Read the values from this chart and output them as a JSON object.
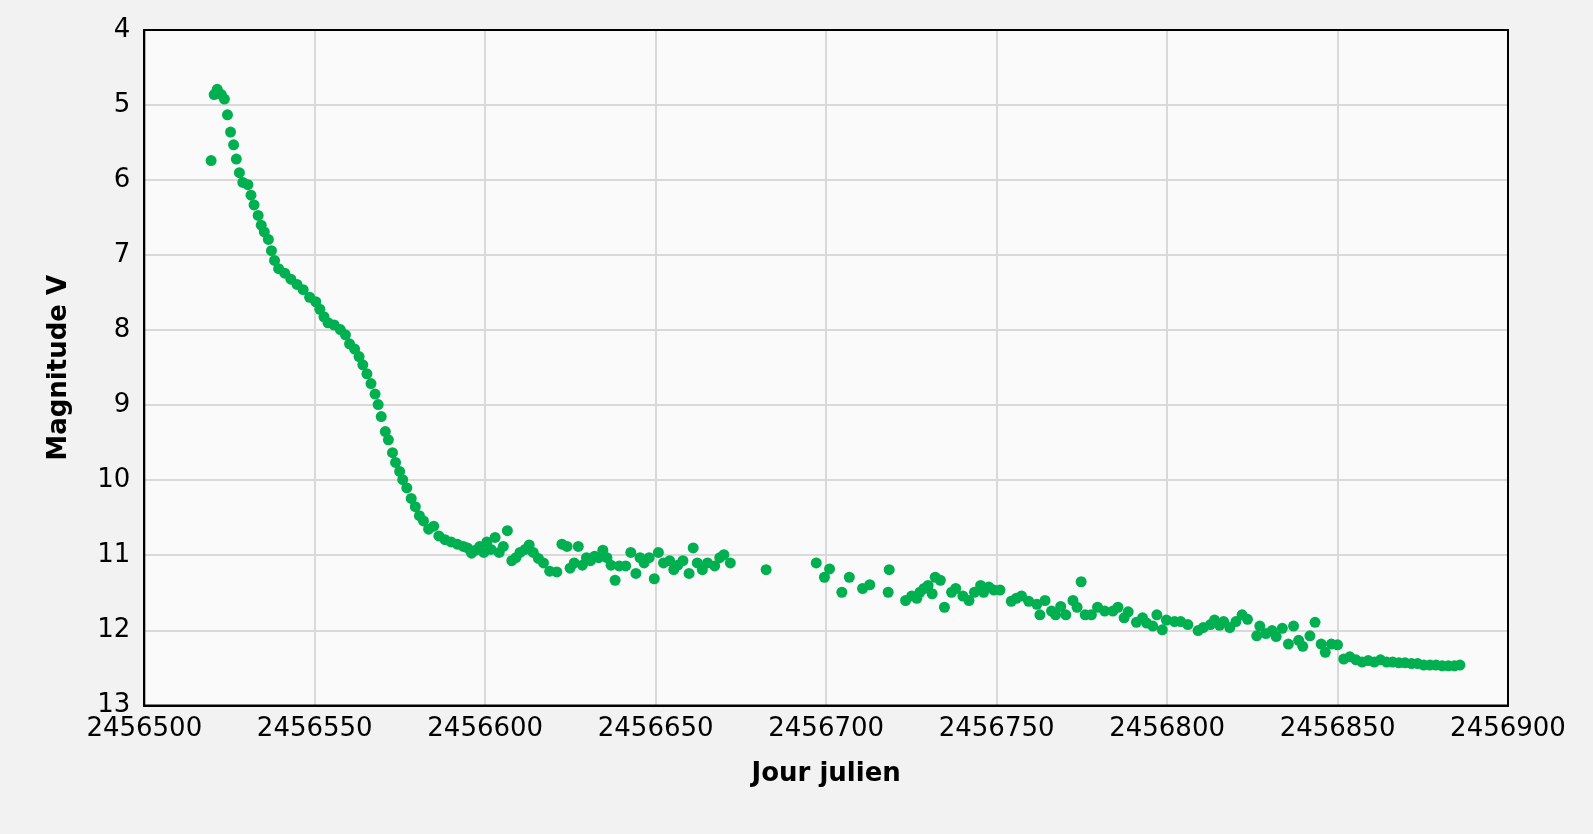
{
  "chart_data": {
    "type": "scatter",
    "xlabel": "Jour julien",
    "ylabel": "Magnitude V",
    "xlim": [
      2456500,
      2456900
    ],
    "xticks": [
      2456500,
      2456550,
      2456600,
      2456650,
      2456700,
      2456750,
      2456800,
      2456850,
      2456900
    ],
    "ylim": [
      13,
      4
    ],
    "yticks": [
      4,
      5,
      6,
      7,
      8,
      9,
      10,
      11,
      12,
      13
    ],
    "grid": true,
    "marker": "circle",
    "series": [
      {
        "color": "#00b050",
        "x": [
          2456519.6,
          2456520.5,
          2456521.4,
          2456522.6,
          2456523.5,
          2456524.4,
          2456525.3,
          2456526.2,
          2456527,
          2456527.9,
          2456528.9,
          2456530.4,
          2456531.3,
          2456532.2,
          2456533.4,
          2456534.3,
          2456535.2,
          2456536.4,
          2456537.3,
          2456538.2,
          2456539.4,
          2456541.2,
          2456543,
          2456544.8,
          2456546.6,
          2456548.5,
          2456550.3,
          2456551.5,
          2456552.7,
          2456553.9,
          2456555.7,
          2456557.5,
          2456559,
          2456560.2,
          2456561.7,
          2456563,
          2456564.1,
          2456565.3,
          2456566.5,
          2456567.7,
          2456568.6,
          2456569.5,
          2456570.7,
          2456571.6,
          2456572.8,
          2456573.7,
          2456574.9,
          2456575.8,
          2456577,
          2456578.3,
          2456579.5,
          2456580.7,
          2456581.9,
          2456583.4,
          2456584.9,
          2456586.4,
          2456588.2,
          2456590,
          2456591.8,
          2456593.6,
          2456594.8,
          2456596,
          2456597.2,
          2456598.4,
          2456599.6,
          2456600.5,
          2456601.7,
          2456602.9,
          2456604.1,
          2456605.3,
          2456606.5,
          2456607.8,
          2456609,
          2456610.2,
          2456611.7,
          2456612.9,
          2456614.1,
          2456615.6,
          2456617.1,
          2456618.9,
          2456621,
          2456622.5,
          2456624,
          2456624.9,
          2456626.1,
          2456627.3,
          2456628.5,
          2456629.7,
          2456630.9,
          2456632.1,
          2456633.3,
          2456634.5,
          2456635.7,
          2456636.9,
          2456638.1,
          2456639.3,
          2456641.2,
          2456642.7,
          2456644.2,
          2456645.4,
          2456646.6,
          2456648.1,
          2456649.6,
          2456650.8,
          2456652.3,
          2456654.1,
          2456655.3,
          2456656.5,
          2456658,
          2456659.8,
          2456661,
          2456662.2,
          2456663.7,
          2456665.2,
          2456667.3,
          2456668.8,
          2456670,
          2456671.9,
          2456682.4,
          2456697.1,
          2456699.5,
          2456701,
          2456704.6,
          2456706.8,
          2456710.7,
          2456712.8,
          2456718.2,
          2456718.5,
          2456723.3,
          2456725.1,
          2456726.6,
          2456727.5,
          2456728.7,
          2456729.9,
          2456731.1,
          2456732,
          2456733.5,
          2456734.7,
          2456736.8,
          2456738,
          2456740.1,
          2456741.9,
          2456743.5,
          2456745.3,
          2456746.2,
          2456747.7,
          2456749.2,
          2456751,
          2456754.3,
          2456755.8,
          2456757.3,
          2456759.4,
          2456761.8,
          2456762.7,
          2456764.2,
          2456766.1,
          2456767.3,
          2456768.8,
          2456770.3,
          2456772.4,
          2456773.6,
          2456774.8,
          2456776,
          2456777.8,
          2456779.6,
          2456781.7,
          2456784.1,
          2456785.6,
          2456787.4,
          2456788.6,
          2456791,
          2456792.8,
          2456794,
          2456795.8,
          2456797,
          2456798.6,
          2456799.8,
          2456802.2,
          2456804,
          2456806.1,
          2456809.1,
          2456810.6,
          2456812.7,
          2456813.9,
          2456815.4,
          2456816.6,
          2456818.4,
          2456820.2,
          2456822,
          2456823.6,
          2456826.3,
          2456827.2,
          2456829,
          2456830.8,
          2456832,
          2456833.8,
          2456835.6,
          2456837.1,
          2456838.6,
          2456839.8,
          2456841.9,
          2456843.4,
          2456845.2,
          2456846.4,
          2456848.2,
          2456850,
          2456851.8,
          2456853.6,
          2456855.4,
          2456857.2,
          2456859,
          2456860.8,
          2456862.6,
          2456864.4,
          2456866.2,
          2456868,
          2456869.8,
          2456871.7,
          2456873.5,
          2456875.3,
          2456877.1,
          2456878.9,
          2456880.7,
          2456882.5,
          2456884.3,
          2456885.9
        ],
        "values": [
          5.74,
          4.86,
          4.79,
          4.86,
          4.92,
          5.13,
          5.36,
          5.53,
          5.72,
          5.9,
          6.03,
          6.06,
          6.2,
          6.33,
          6.47,
          6.6,
          6.69,
          6.79,
          6.94,
          7.07,
          7.18,
          7.24,
          7.32,
          7.39,
          7.46,
          7.56,
          7.62,
          7.72,
          7.82,
          7.9,
          7.93,
          7.99,
          8.06,
          8.18,
          8.25,
          8.35,
          8.46,
          8.58,
          8.71,
          8.85,
          8.99,
          9.15,
          9.35,
          9.46,
          9.63,
          9.76,
          9.88,
          9.99,
          10.1,
          10.24,
          10.35,
          10.47,
          10.54,
          10.65,
          10.61,
          10.74,
          10.79,
          10.82,
          10.85,
          10.88,
          10.9,
          10.97,
          10.93,
          10.88,
          10.96,
          10.82,
          10.92,
          10.76,
          10.96,
          10.88,
          10.67,
          11.07,
          11.03,
          10.96,
          10.92,
          10.86,
          10.96,
          11.04,
          11.1,
          11.21,
          11.22,
          10.85,
          10.88,
          11.17,
          11.1,
          10.88,
          11.13,
          11.03,
          11.07,
          11.01,
          11.03,
          10.93,
          11.03,
          11.13,
          11.33,
          11.14,
          11.14,
          10.96,
          11.24,
          11.03,
          11.1,
          11.03,
          11.31,
          10.96,
          11.1,
          11.07,
          11.19,
          11.13,
          11.07,
          11.24,
          10.9,
          11.1,
          11.19,
          11.1,
          11.14,
          11.03,
          10.99,
          11.1,
          11.19,
          11.1,
          11.29,
          11.18,
          11.49,
          11.29,
          11.44,
          11.39,
          11.49,
          11.19,
          11.6,
          11.54,
          11.57,
          11.49,
          11.44,
          11.4,
          11.51,
          11.29,
          11.33,
          11.69,
          11.49,
          11.44,
          11.54,
          11.6,
          11.49,
          11.4,
          11.49,
          11.42,
          11.46,
          11.46,
          11.61,
          11.57,
          11.54,
          11.61,
          11.65,
          11.79,
          11.6,
          11.74,
          11.79,
          11.68,
          11.79,
          11.6,
          11.69,
          11.35,
          11.79,
          11.79,
          11.69,
          11.74,
          11.74,
          11.69,
          11.83,
          11.75,
          11.89,
          11.83,
          11.9,
          11.94,
          11.79,
          11.99,
          11.86,
          11.88,
          11.88,
          11.92,
          12,
          11.96,
          11.92,
          11.86,
          11.93,
          11.88,
          11.96,
          11.88,
          11.79,
          11.85,
          12.07,
          11.94,
          12.04,
          12,
          12.08,
          11.97,
          12.18,
          11.94,
          12.13,
          12.21,
          12.07,
          11.89,
          12.18,
          12.29,
          12.18,
          12.19,
          12.38,
          12.35,
          12.39,
          12.42,
          12.4,
          12.42,
          12.39,
          12.42,
          12.42,
          12.43,
          12.43,
          12.44,
          12.44,
          12.46,
          12.46,
          12.46,
          12.47,
          12.47,
          12.47,
          12.46
        ]
      }
    ]
  }
}
